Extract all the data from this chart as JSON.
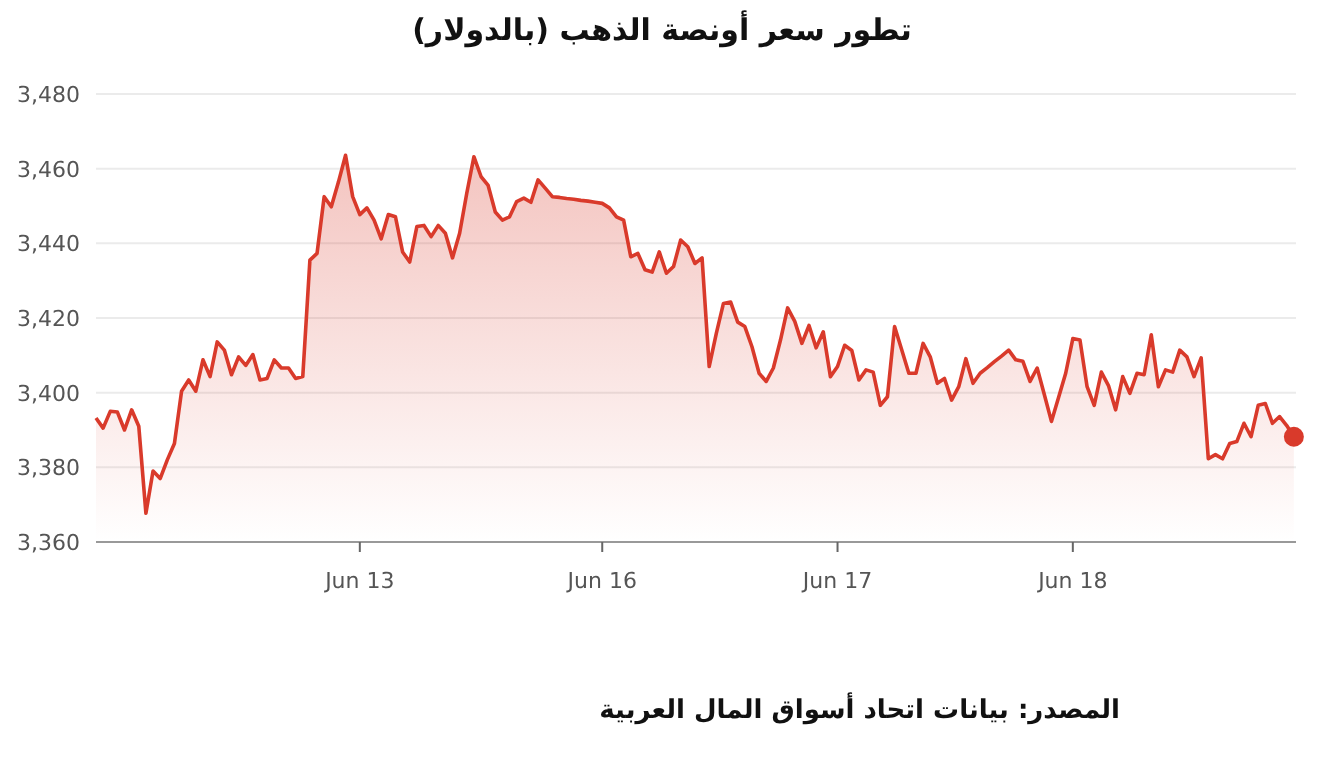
{
  "chart_data": {
    "type": "area",
    "title": "تطور سعر أونصة الذهب (بالدولار)",
    "annotations": [
      "المصدر: بيانات اتحاد أسواق المال العربية"
    ],
    "categories": [
      null,
      null,
      null,
      null,
      null,
      null,
      null,
      null,
      null,
      null,
      null,
      null,
      null,
      null,
      null,
      null,
      null,
      null,
      null,
      null,
      null,
      null,
      null,
      null,
      null,
      null,
      null,
      null,
      null,
      null,
      null,
      null,
      null,
      null,
      null,
      null,
      null,
      "Jun 13",
      null,
      null,
      null,
      null,
      null,
      null,
      null,
      null,
      null,
      null,
      null,
      null,
      null,
      null,
      null,
      null,
      null,
      null,
      null,
      null,
      null,
      null,
      null,
      null,
      null,
      null,
      null,
      null,
      null,
      null,
      null,
      null,
      null,
      "Jun 16",
      null,
      null,
      null,
      null,
      null,
      null,
      null,
      null,
      null,
      null,
      null,
      null,
      null,
      null,
      null,
      null,
      null,
      null,
      null,
      null,
      null,
      null,
      null,
      null,
      null,
      null,
      null,
      null,
      null,
      null,
      null,
      null,
      "Jun 17",
      null,
      null,
      null,
      null,
      null,
      null,
      null,
      null,
      null,
      null,
      null,
      null,
      null,
      null,
      null,
      null,
      null,
      null,
      null,
      null,
      null,
      null,
      null,
      null,
      null,
      null,
      null,
      null,
      null,
      null,
      null,
      null,
      "Jun 18",
      null,
      null,
      null,
      null,
      null,
      null,
      null,
      null,
      null,
      null,
      null,
      null,
      null,
      null,
      null,
      null,
      null,
      null,
      null,
      null,
      null,
      null,
      null,
      null,
      null,
      null,
      null,
      null,
      null,
      null,
      null
    ],
    "ylim": [
      3360,
      3480
    ],
    "yticks": [
      {
        "value": 3360,
        "label": "3,360"
      },
      {
        "value": 3380,
        "label": "3,380"
      },
      {
        "value": 3400,
        "label": "3,400"
      },
      {
        "value": 3420,
        "label": "3,420"
      },
      {
        "value": 3440,
        "label": "3,440"
      },
      {
        "value": 3460,
        "label": "3,460"
      },
      {
        "value": 3480,
        "label": "3,480"
      }
    ],
    "grid": "y",
    "series": [
      {
        "color": "#d93a2b",
        "values": [
          3393.2,
          3390.5,
          3395,
          3394.8,
          3390,
          3395.4,
          3391,
          3367.7,
          3379,
          3377,
          3382,
          3386.4,
          3400.4,
          3403.4,
          3400.4,
          3408.8,
          3404.3,
          3413.6,
          3411.4,
          3404.8,
          3409.6,
          3407.3,
          3410.2,
          3403.4,
          3403.8,
          3408.8,
          3406.6,
          3406.6,
          3403.8,
          3404.3,
          3435.5,
          3437.3,
          3452.5,
          3449.8,
          3456.4,
          3463.6,
          3452.5,
          3447.7,
          3449.5,
          3446.2,
          3441.2,
          3447.7,
          3447.1,
          3437.7,
          3435,
          3444.5,
          3444.8,
          3441.8,
          3444.8,
          3442.7,
          3436.1,
          3442.7,
          3453.4,
          3463.2,
          3457.9,
          3455.5,
          3448.4,
          3446.2,
          3447.1,
          3451.2,
          3452.1,
          3451,
          3457,
          3454.8,
          3452.5,
          3452.3,
          3452,
          3451.8,
          3451.5,
          3451.3,
          3451,
          3450.7,
          3449.5,
          3447.1,
          3446.2,
          3436.4,
          3437.3,
          3432.9,
          3432.3,
          3437.7,
          3432,
          3433.8,
          3440.9,
          3439.1,
          3434.6,
          3436.1,
          3407,
          3415.9,
          3423.9,
          3424.3,
          3418.9,
          3417.7,
          3412.3,
          3405.2,
          3403,
          3406.6,
          3414.1,
          3422.7,
          3419.1,
          3413.2,
          3418,
          3412,
          3416.3,
          3404.3,
          3407,
          3412.7,
          3411.3,
          3403.4,
          3406.1,
          3405.5,
          3396.6,
          3398.9,
          3417.7,
          3411.5,
          3405.2,
          3405.2,
          3413.2,
          3409.6,
          3402.5,
          3403.8,
          3398,
          3401.6,
          3409.1,
          3402.5,
          3405.2,
          3406.7,
          3408.3,
          3409.8,
          3411.4,
          3408.8,
          3408.4,
          3403,
          3406.6,
          3399.5,
          3392.3,
          3398.7,
          3405.2,
          3414.5,
          3414.1,
          3401.6,
          3396.6,
          3405.5,
          3401.9,
          3395.4,
          3404.3,
          3399.8,
          3405.2,
          3404.8,
          3415.5,
          3401.6,
          3406.1,
          3405.5,
          3411.4,
          3409.6,
          3404.3,
          3409.3,
          3382.3,
          3383.4,
          3382.3,
          3386.4,
          3386.9,
          3391.8,
          3388.2,
          3396.6,
          3397.1,
          3391.8,
          3393.6,
          3391.2,
          3388.2
        ]
      }
    ]
  }
}
